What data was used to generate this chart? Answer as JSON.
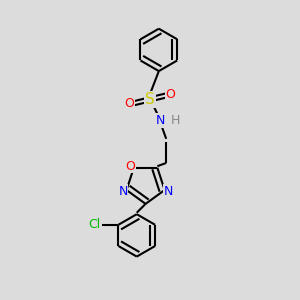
{
  "background_color": "#dcdcdc",
  "bond_color": "#000000",
  "atom_colors": {
    "S": "#cccc00",
    "O": "#ff0000",
    "N": "#0000ff",
    "Cl": "#00bb00",
    "H": "#888888"
  },
  "figsize": [
    3.0,
    3.0
  ],
  "dpi": 100
}
